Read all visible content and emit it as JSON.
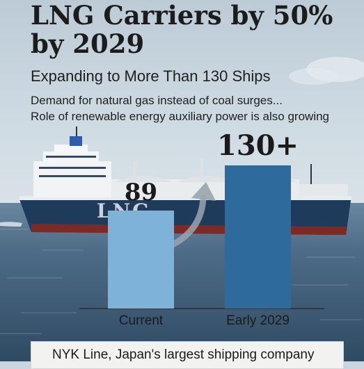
{
  "headline": {
    "line1": "LNG Carriers by 50%",
    "line2": "by 2029"
  },
  "subheadline": "Expanding to More Than 130 Ships",
  "description": {
    "line1": "Demand for natural gas instead of coal surges...",
    "line2": "Role of renewable energy auxiliary power is also growing"
  },
  "ship_hull_text": "LNG",
  "caption": "NYK Line, Japan's largest shipping company",
  "chart_data": {
    "type": "bar",
    "title": "",
    "xlabel": "",
    "ylabel": "",
    "categories": [
      "Current",
      "Early 2029"
    ],
    "values": [
      89,
      130
    ],
    "value_labels": [
      "89",
      "130+"
    ],
    "ylim": [
      0,
      135
    ],
    "grid": false,
    "legend": "none",
    "bar_colors": [
      "#7fb2d8",
      "#2f6a9c"
    ]
  },
  "colors": {
    "sky": "#c9d6df",
    "sea": "#4b6a86",
    "hull": "#1f3b5c",
    "arrow": "#9aa5ae"
  }
}
